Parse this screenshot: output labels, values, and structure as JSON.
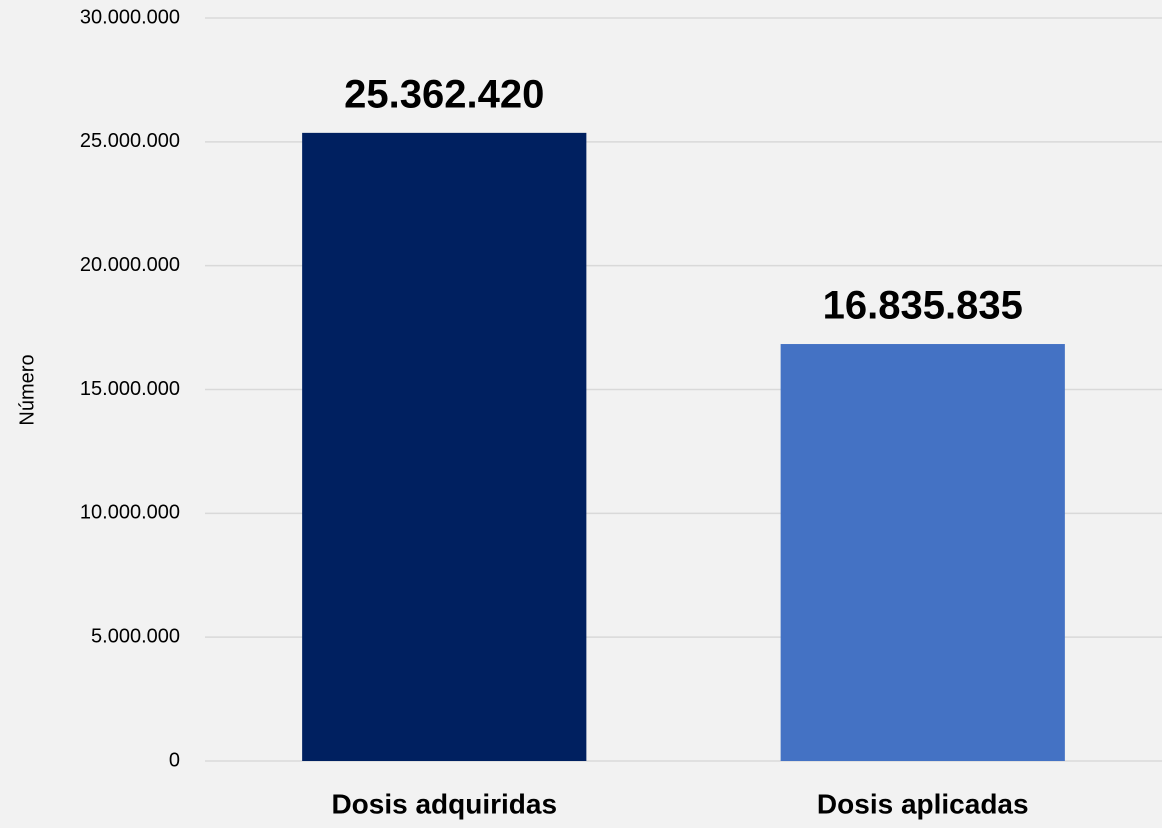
{
  "chart_data": {
    "type": "bar",
    "y_axis_label": "Número",
    "categories": [
      "Dosis adquiridas",
      "Dosis aplicadas"
    ],
    "values": [
      25362420,
      16835835
    ],
    "value_labels": [
      "25.362.420",
      "16.835.835"
    ],
    "colors": [
      "#002060",
      "#4472c4"
    ],
    "ylim": [
      0,
      30000000
    ],
    "yticks": [
      0,
      {
        "value": 5000000,
        "label": "5.000.000"
      },
      {
        "value": 10000000,
        "label": "10.000.000"
      },
      {
        "value": 15000000,
        "label": "15.000.000"
      },
      {
        "value": 20000000,
        "label": "20.000.000"
      },
      {
        "value": 25000000,
        "label": "25.000.000"
      },
      {
        "value": 30000000,
        "label": "30.000.000"
      }
    ],
    "grid": true
  }
}
